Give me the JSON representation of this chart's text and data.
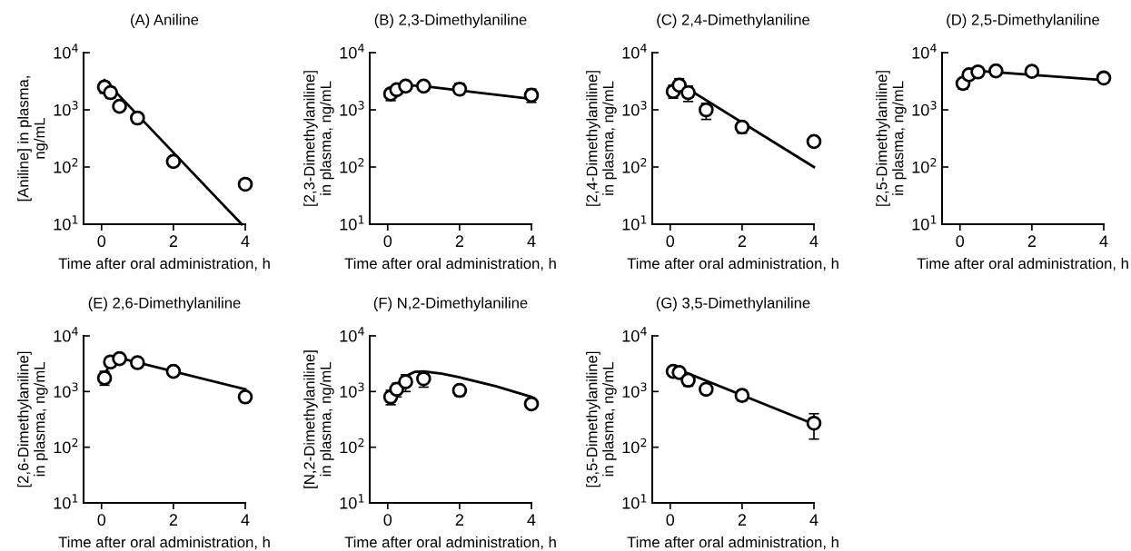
{
  "chart_data": [
    {
      "type": "scatter",
      "title": "(A) Aniline",
      "xlabel": "Time after oral administration, h",
      "ylabel": "[Aniline] in plasma,\nng/mL",
      "log": "y",
      "xlim": [
        -0.5,
        4
      ],
      "xticks": [
        0,
        2,
        4
      ],
      "ylim": [
        10,
        10000
      ],
      "yticks": [
        {
          "value": 10,
          "label": "10$^{1}$"
        },
        {
          "value": 100,
          "label": "10$^{2}$"
        },
        {
          "value": 1000,
          "label": "10$^{3}$"
        },
        {
          "value": 10000,
          "label": "10$^{4}$"
        }
      ],
      "grid": false,
      "legend": false,
      "series": [
        {
          "marker": "circle",
          "color": "#000000",
          "x": [
            0.083,
            0.25,
            0.5,
            1,
            2,
            4
          ],
          "values": [
            2500,
            2000,
            1150,
            720,
            125,
            50
          ],
          "errors": [
            [
              1950,
              3100
            ],
            [
              1600,
              2500
            ],
            null,
            null,
            null,
            null
          ]
        },
        {
          "type": "line",
          "marker": "none",
          "line_style": "solid",
          "color": "#000000",
          "x": [
            0.083,
            3.9
          ],
          "values": [
            3300,
            10
          ]
        }
      ]
    },
    {
      "type": "scatter",
      "title": "(B) 2,3-Dimethylaniline",
      "xlabel": "Time after oral administration, h",
      "ylabel": "[2,3-Dimethylaniline]\nin plasma, ng/mL",
      "log": "y",
      "xlim": [
        -0.5,
        4
      ],
      "xticks": [
        0,
        2,
        4
      ],
      "ylim": [
        10,
        10000
      ],
      "yticks": [
        {
          "value": 10,
          "label": "10$^{1}$"
        },
        {
          "value": 100,
          "label": "10$^{2}$"
        },
        {
          "value": 1000,
          "label": "10$^{3}$"
        },
        {
          "value": 10000,
          "label": "10$^{4}$"
        }
      ],
      "grid": false,
      "legend": false,
      "series": [
        {
          "marker": "circle",
          "color": "#000000",
          "x": [
            0.083,
            0.25,
            0.5,
            1,
            2,
            4
          ],
          "values": [
            1900,
            2250,
            2600,
            2600,
            2300,
            1800
          ],
          "errors": [
            [
              1450,
              2300
            ],
            null,
            [
              2200,
              3000
            ],
            null,
            [
              1900,
              2900
            ],
            [
              1350,
              2300
            ]
          ]
        },
        {
          "type": "line",
          "marker": "none",
          "line_style": "solid",
          "color": "#000000",
          "x": [
            0.083,
            0.5,
            1,
            4
          ],
          "values": [
            2300,
            2700,
            2600,
            1550
          ]
        }
      ]
    },
    {
      "type": "scatter",
      "title": "(C) 2,4-Dimethylaniline",
      "xlabel": "Time after oral administration, h",
      "ylabel": "[2,4-Dimethylaniline]\nin plasma, ng/mL",
      "log": "y",
      "xlim": [
        -0.5,
        4
      ],
      "xticks": [
        0,
        2,
        4
      ],
      "ylim": [
        10,
        10000
      ],
      "yticks": [
        {
          "value": 10,
          "label": "10$^{1}$"
        },
        {
          "value": 100,
          "label": "10$^{2}$"
        },
        {
          "value": 1000,
          "label": "10$^{3}$"
        },
        {
          "value": 10000,
          "label": "10$^{4}$"
        }
      ],
      "grid": false,
      "legend": false,
      "series": [
        {
          "marker": "circle",
          "color": "#000000",
          "x": [
            0.083,
            0.25,
            0.5,
            1,
            2,
            4
          ],
          "values": [
            2100,
            2700,
            2000,
            1000,
            500,
            280
          ],
          "errors": [
            [
              1600,
              2700
            ],
            [
              2100,
              3500
            ],
            [
              1400,
              2600
            ],
            [
              680,
              1300
            ],
            [
              390,
              600
            ],
            null
          ]
        },
        {
          "type": "line",
          "marker": "none",
          "line_style": "solid",
          "color": "#000000",
          "x": [
            0.083,
            0.25,
            0.5,
            4
          ],
          "values": [
            2500,
            2600,
            2300,
            100
          ]
        }
      ]
    },
    {
      "type": "scatter",
      "title": "(D) 2,5-Dimethylaniline",
      "xlabel": "Time after oral administration, h",
      "ylabel": "[2,5-Dimethylaniline]\nin plasma, ng/mL",
      "log": "y",
      "xlim": [
        -0.5,
        4
      ],
      "xticks": [
        0,
        2,
        4
      ],
      "ylim": [
        10,
        10000
      ],
      "yticks": [
        {
          "value": 10,
          "label": "10$^{1}$"
        },
        {
          "value": 100,
          "label": "10$^{2}$"
        },
        {
          "value": 1000,
          "label": "10$^{3}$"
        },
        {
          "value": 10000,
          "label": "10$^{4}$"
        }
      ],
      "grid": false,
      "legend": false,
      "series": [
        {
          "marker": "circle",
          "color": "#000000",
          "x": [
            0.083,
            0.25,
            0.5,
            1,
            2,
            4
          ],
          "values": [
            2900,
            4100,
            4600,
            4800,
            4700,
            3600
          ],
          "errors": [
            [
              2300,
              3500
            ],
            [
              3500,
              4600
            ],
            null,
            null,
            null,
            null
          ]
        },
        {
          "type": "line",
          "marker": "none",
          "line_style": "solid",
          "color": "#000000",
          "x": [
            0.083,
            0.5,
            4
          ],
          "values": [
            3700,
            4800,
            3300
          ]
        }
      ]
    },
    {
      "type": "scatter",
      "title": "(E) 2,6-Dimethylaniline",
      "xlabel": "Time after oral administration, h",
      "ylabel": "[2,6-Dimethylaniline]\nin plasma, ng/mL",
      "log": "y",
      "xlim": [
        -0.5,
        4
      ],
      "xticks": [
        0,
        2,
        4
      ],
      "ylim": [
        10,
        10000
      ],
      "yticks": [
        {
          "value": 10,
          "label": "10$^{1}$"
        },
        {
          "value": 100,
          "label": "10$^{2}$"
        },
        {
          "value": 1000,
          "label": "10$^{3}$"
        },
        {
          "value": 10000,
          "label": "10$^{4}$"
        }
      ],
      "grid": false,
      "legend": false,
      "series": [
        {
          "marker": "circle",
          "color": "#000000",
          "x": [
            0.083,
            0.25,
            0.5,
            1,
            2,
            4
          ],
          "values": [
            1750,
            3400,
            3900,
            3300,
            2300,
            800
          ],
          "errors": [
            [
              1300,
              2300
            ],
            [
              2800,
              4000
            ],
            null,
            null,
            null,
            null
          ]
        },
        {
          "type": "line",
          "marker": "none",
          "line_style": "solid",
          "color": "#000000",
          "x": [
            0.083,
            0.25,
            0.5,
            4
          ],
          "values": [
            2000,
            3300,
            4000,
            1100
          ]
        }
      ]
    },
    {
      "type": "scatter",
      "title": "(F) N,2-Dimethylaniline",
      "xlabel": "Time after oral administration, h",
      "ylabel": "[N,2-Dimethylaniline]\nin plasma, ng/mL",
      "log": "y",
      "xlim": [
        -0.5,
        4
      ],
      "xticks": [
        0,
        2,
        4
      ],
      "ylim": [
        10,
        10000
      ],
      "yticks": [
        {
          "value": 10,
          "label": "10$^{1}$"
        },
        {
          "value": 100,
          "label": "10$^{2}$"
        },
        {
          "value": 1000,
          "label": "10$^{3}$"
        },
        {
          "value": 10000,
          "label": "10$^{4}$"
        }
      ],
      "grid": false,
      "legend": false,
      "series": [
        {
          "marker": "circle",
          "color": "#000000",
          "x": [
            0.083,
            0.25,
            0.5,
            1,
            2,
            4
          ],
          "values": [
            800,
            1100,
            1500,
            1700,
            1050,
            600
          ],
          "errors": [
            [
              580,
              1050
            ],
            [
              800,
              1400
            ],
            [
              1000,
              2000
            ],
            [
              1200,
              2200
            ],
            [
              830,
              1100
            ],
            null
          ]
        },
        {
          "type": "line",
          "marker": "none",
          "line_style": "solid",
          "color": "#000000",
          "x": [
            0.083,
            0.25,
            0.5,
            0.75,
            1,
            1.5,
            2,
            3,
            4
          ],
          "values": [
            700,
            1300,
            1900,
            2250,
            2300,
            2100,
            1800,
            1250,
            800
          ]
        }
      ]
    },
    {
      "type": "scatter",
      "title": "(G) 3,5-Dimethylaniline",
      "xlabel": "Time after oral administration, h",
      "ylabel": "[3,5-Dimethylaniline]\nin plasma, ng/mL",
      "log": "y",
      "xlim": [
        -0.5,
        4
      ],
      "xticks": [
        0,
        2,
        4
      ],
      "ylim": [
        10,
        10000
      ],
      "yticks": [
        {
          "value": 10,
          "label": "10$^{1}$"
        },
        {
          "value": 100,
          "label": "10$^{2}$"
        },
        {
          "value": 1000,
          "label": "10$^{3}$"
        },
        {
          "value": 10000,
          "label": "10$^{4}$"
        }
      ],
      "grid": false,
      "legend": false,
      "series": [
        {
          "marker": "circle",
          "color": "#000000",
          "x": [
            0.083,
            0.25,
            0.5,
            1,
            2,
            4
          ],
          "values": [
            2300,
            2200,
            1600,
            1100,
            850,
            270
          ],
          "errors": [
            null,
            null,
            [
              1250,
              1900
            ],
            [
              900,
              1300
            ],
            [
              680,
              1050
            ],
            [
              140,
              400
            ]
          ]
        },
        {
          "type": "line",
          "marker": "none",
          "line_style": "solid",
          "color": "#000000",
          "x": [
            0.083,
            4
          ],
          "values": [
            2700,
            260
          ]
        }
      ]
    }
  ]
}
